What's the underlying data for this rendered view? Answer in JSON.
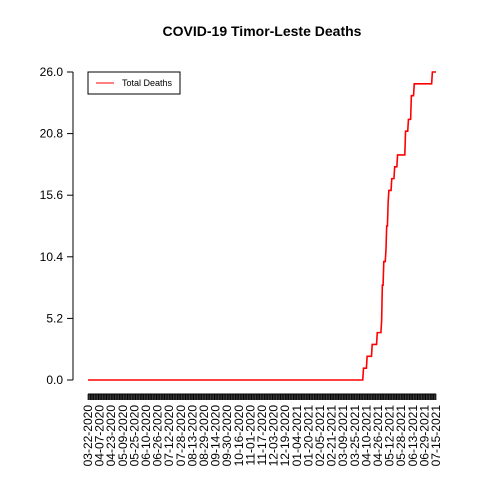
{
  "chart_data": {
    "type": "line",
    "title": "COVID-19 Timor-Leste Deaths",
    "xlabel": "",
    "ylabel": "",
    "x_range": [
      "03-22-2020",
      "07-15-2021"
    ],
    "ylim": [
      0,
      26
    ],
    "yticks": [
      "0.0",
      "5.2",
      "10.4",
      "15.6",
      "20.8",
      "26.0"
    ],
    "xtick_labels": [
      "03-22-2020",
      "04-07-2020",
      "04-23-2020",
      "05-09-2020",
      "05-25-2020",
      "06-10-2020",
      "06-26-2020",
      "07-12-2020",
      "07-28-2020",
      "08-13-2020",
      "08-29-2020",
      "09-14-2020",
      "09-30-2020",
      "10-16-2020",
      "11-01-2020",
      "11-17-2020",
      "12-03-2020",
      "12-19-2020",
      "01-04-2021",
      "01-20-2021",
      "02-05-2021",
      "02-21-2021",
      "03-09-2021",
      "03-25-2021",
      "04-10-2021",
      "04-26-2021",
      "05-12-2021",
      "05-28-2021",
      "06-13-2021",
      "06-29-2021",
      "07-15-2021"
    ],
    "legend": {
      "position": "top-left",
      "entries": [
        "Total Deaths"
      ]
    },
    "grid": false,
    "series": [
      {
        "name": "Total Deaths",
        "color": "#ff0000",
        "points": [
          [
            "03-22-2020",
            0
          ],
          [
            "04-05-2021",
            0
          ],
          [
            "04-06-2021",
            1
          ],
          [
            "04-10-2021",
            1
          ],
          [
            "04-11-2021",
            2
          ],
          [
            "04-17-2021",
            2
          ],
          [
            "04-18-2021",
            3
          ],
          [
            "04-24-2021",
            3
          ],
          [
            "04-25-2021",
            4
          ],
          [
            "04-30-2021",
            4
          ],
          [
            "05-01-2021",
            5
          ],
          [
            "05-02-2021",
            8
          ],
          [
            "05-03-2021",
            8
          ],
          [
            "05-04-2021",
            10
          ],
          [
            "05-06-2021",
            10
          ],
          [
            "05-07-2021",
            11
          ],
          [
            "05-08-2021",
            13
          ],
          [
            "05-09-2021",
            13
          ],
          [
            "05-10-2021",
            15
          ],
          [
            "05-11-2021",
            16
          ],
          [
            "05-14-2021",
            16
          ],
          [
            "05-15-2021",
            17
          ],
          [
            "05-18-2021",
            17
          ],
          [
            "05-19-2021",
            18
          ],
          [
            "05-22-2021",
            18
          ],
          [
            "05-23-2021",
            19
          ],
          [
            "06-02-2021",
            19
          ],
          [
            "06-03-2021",
            21
          ],
          [
            "06-06-2021",
            21
          ],
          [
            "06-07-2021",
            22
          ],
          [
            "06-10-2021",
            22
          ],
          [
            "06-11-2021",
            24
          ],
          [
            "06-14-2021",
            24
          ],
          [
            "06-15-2021",
            25
          ],
          [
            "07-09-2021",
            25
          ],
          [
            "07-10-2021",
            26
          ],
          [
            "07-15-2021",
            26
          ]
        ]
      }
    ]
  }
}
